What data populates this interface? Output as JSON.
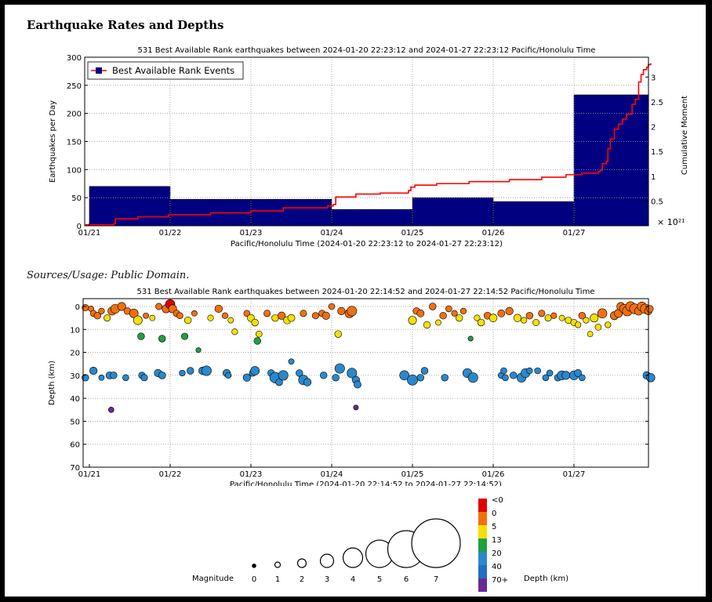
{
  "page": {
    "title": "Earthquake Rates and Depths",
    "sources_note": "Sources/Usage: Public Domain."
  },
  "chart_data": [
    {
      "type": "bar",
      "title": "531 Best Available Rank earthquakes between 2024-01-20 22:23:12 and 2024-01-27 22:23:12 Pacific/Honolulu Time",
      "xlabel": "Pacific/Honolulu Time (2024-01-20 22:23:12 to 2024-01-27 22:23:12)",
      "ylabel": "Earthquakes per Day",
      "y2label": "Cumulative Moment",
      "y2_multiplier": "× 10²¹",
      "categories": [
        "01/21",
        "01/22",
        "01/23",
        "01/24",
        "01/25",
        "01/26",
        "01/27"
      ],
      "x_ticks": [
        "01/21",
        "01/22",
        "01/23",
        "01/24",
        "01/25",
        "01/26",
        "01/27"
      ],
      "ylim": [
        0,
        300
      ],
      "y_ticks": [
        0,
        50,
        100,
        150,
        200,
        250,
        300
      ],
      "y2lim": [
        0,
        3.4
      ],
      "y2_ticks": [
        0.5,
        1,
        1.5,
        2,
        2.5,
        3
      ],
      "grid": true,
      "legend_position": "top-left",
      "series": [
        {
          "name": "Best Available Rank Events",
          "color": "#000080",
          "values": [
            70,
            47,
            47,
            29,
            50,
            43,
            233
          ]
        },
        {
          "color": "#ff0000",
          "type": "step-line",
          "x": [
            -0.05,
            0.3,
            0.32,
            0.6,
            0.98,
            1.5,
            2.0,
            2.4,
            2.95,
            3.02,
            3.05,
            3.3,
            3.6,
            3.95,
            3.98,
            4.03,
            4.3,
            4.7,
            5.2,
            5.6,
            5.9,
            6.1,
            6.3,
            6.32,
            6.35,
            6.4,
            6.42,
            6.45,
            6.5,
            6.55,
            6.6,
            6.65,
            6.72,
            6.76,
            6.8,
            6.83,
            6.86,
            6.9,
            6.92,
            6.95
          ],
          "values": [
            0.02,
            0.04,
            0.14,
            0.18,
            0.22,
            0.26,
            0.3,
            0.36,
            0.4,
            0.43,
            0.58,
            0.64,
            0.66,
            0.71,
            0.78,
            0.82,
            0.85,
            0.89,
            0.93,
            0.98,
            1.03,
            1.06,
            1.09,
            1.12,
            1.25,
            1.3,
            1.55,
            1.75,
            1.95,
            2.05,
            2.15,
            2.25,
            2.45,
            2.55,
            2.9,
            3.05,
            3.15,
            3.2,
            3.25,
            3.28
          ]
        }
      ]
    },
    {
      "type": "scatter",
      "title": "531 Best Available Rank earthquakes between 2024-01-20 22:14:52 and 2024-01-27 22:14:52 Pacific/Honolulu Time",
      "xlabel": "Pacific/Honolulu Time (2024-01-20 22:14:52 to 2024-01-27 22:14:52)",
      "ylabel": "Depth (km)",
      "x_ticks": [
        "01/21",
        "01/22",
        "01/23",
        "01/24",
        "01/25",
        "01/26",
        "01/27"
      ],
      "ylim": [
        0,
        70
      ],
      "y_ticks": [
        0,
        10,
        20,
        30,
        40,
        50,
        60,
        70
      ],
      "y_inverted": true,
      "grid": true,
      "points": [
        {
          "t": -0.05,
          "d": 0.5,
          "m": 1.5
        },
        {
          "t": 0.02,
          "d": 1,
          "m": 1.2
        },
        {
          "t": 0.05,
          "d": 3,
          "m": 1.4
        },
        {
          "t": 0.1,
          "d": 4,
          "m": 1.6
        },
        {
          "t": 0.15,
          "d": 2,
          "m": 1.3
        },
        {
          "t": 0.22,
          "d": 5,
          "m": 1.5
        },
        {
          "t": 0.28,
          "d": 2,
          "m": 2.0
        },
        {
          "t": 0.32,
          "d": 1,
          "m": 2.3
        },
        {
          "t": 0.4,
          "d": 0,
          "m": 2.0
        },
        {
          "t": 0.47,
          "d": 2,
          "m": 1.6
        },
        {
          "t": 0.55,
          "d": 3,
          "m": 2.2
        },
        {
          "t": 0.6,
          "d": 6,
          "m": 2.2
        },
        {
          "t": 0.64,
          "d": 13,
          "m": 1.6
        },
        {
          "t": 0.7,
          "d": 4,
          "m": 1.2
        },
        {
          "t": 0.78,
          "d": 5,
          "m": 1.2
        },
        {
          "t": 0.86,
          "d": 0,
          "m": 1.5
        },
        {
          "t": 0.9,
          "d": 14,
          "m": 1.6
        },
        {
          "t": 0.95,
          "d": 1,
          "m": 2.0
        },
        {
          "t": 1.0,
          "d": -1,
          "m": 2.4
        },
        {
          "t": 1.03,
          "d": 1,
          "m": 2.0
        },
        {
          "t": 1.08,
          "d": 3,
          "m": 1.5
        },
        {
          "t": 1.12,
          "d": 4,
          "m": 1.4
        },
        {
          "t": 1.18,
          "d": 13,
          "m": 1.5
        },
        {
          "t": 1.22,
          "d": 6,
          "m": 1.6
        },
        {
          "t": 1.3,
          "d": 3,
          "m": 1.2
        },
        {
          "t": 1.35,
          "d": 19,
          "m": 1.0
        },
        {
          "t": 1.5,
          "d": 5,
          "m": 1.3
        },
        {
          "t": 1.6,
          "d": 1,
          "m": 1.8
        },
        {
          "t": 1.68,
          "d": 4,
          "m": 1.3
        },
        {
          "t": 1.75,
          "d": 6,
          "m": 1.2
        },
        {
          "t": 1.8,
          "d": 11,
          "m": 1.3
        },
        {
          "t": 1.95,
          "d": 3,
          "m": 1.4
        },
        {
          "t": 2.0,
          "d": 5,
          "m": 1.7
        },
        {
          "t": 2.05,
          "d": 7,
          "m": 1.6
        },
        {
          "t": 2.08,
          "d": 15,
          "m": 1.6
        },
        {
          "t": 2.1,
          "d": 12,
          "m": 1.4
        },
        {
          "t": 2.2,
          "d": 3,
          "m": 1.5
        },
        {
          "t": 2.3,
          "d": 5,
          "m": 1.6
        },
        {
          "t": 2.38,
          "d": 4,
          "m": 1.8
        },
        {
          "t": 2.45,
          "d": 6,
          "m": 1.8
        },
        {
          "t": 2.5,
          "d": 5,
          "m": 1.7
        },
        {
          "t": 2.65,
          "d": 3,
          "m": 1.5
        },
        {
          "t": 2.8,
          "d": 4,
          "m": 1.5
        },
        {
          "t": 2.88,
          "d": 3,
          "m": 1.5
        },
        {
          "t": 2.93,
          "d": 4,
          "m": 1.8
        },
        {
          "t": 3.0,
          "d": 0,
          "m": 1.4
        },
        {
          "t": 3.08,
          "d": 12,
          "m": 1.6
        },
        {
          "t": 3.12,
          "d": 2,
          "m": 1.8
        },
        {
          "t": 3.22,
          "d": 3,
          "m": 2.2
        },
        {
          "t": 3.25,
          "d": 2,
          "m": 2.5
        },
        {
          "t": 3.3,
          "d": 44,
          "m": 1.0
        },
        {
          "t": 4.0,
          "d": 6,
          "m": 2.0
        },
        {
          "t": 4.05,
          "d": 2,
          "m": 1.6
        },
        {
          "t": 4.1,
          "d": 3,
          "m": 1.7
        },
        {
          "t": 4.18,
          "d": 8,
          "m": 1.6
        },
        {
          "t": 4.25,
          "d": 0,
          "m": 1.6
        },
        {
          "t": 4.32,
          "d": 7,
          "m": 1.2
        },
        {
          "t": 4.38,
          "d": 4,
          "m": 1.6
        },
        {
          "t": 4.45,
          "d": 1,
          "m": 1.4
        },
        {
          "t": 4.52,
          "d": 3,
          "m": 1.3
        },
        {
          "t": 4.58,
          "d": 5,
          "m": 1.6
        },
        {
          "t": 4.63,
          "d": 2,
          "m": 1.3
        },
        {
          "t": 4.72,
          "d": 14,
          "m": 1.0
        },
        {
          "t": 4.8,
          "d": 5,
          "m": 1.3
        },
        {
          "t": 4.85,
          "d": 7,
          "m": 1.6
        },
        {
          "t": 4.93,
          "d": 4,
          "m": 1.7
        },
        {
          "t": 5.0,
          "d": 5,
          "m": 1.9
        },
        {
          "t": 5.1,
          "d": 3,
          "m": 1.7
        },
        {
          "t": 5.2,
          "d": 2,
          "m": 1.8
        },
        {
          "t": 5.3,
          "d": 5,
          "m": 1.8
        },
        {
          "t": 5.38,
          "d": 6,
          "m": 1.3
        },
        {
          "t": 5.45,
          "d": 4,
          "m": 1.6
        },
        {
          "t": 5.53,
          "d": 7,
          "m": 1.5
        },
        {
          "t": 5.6,
          "d": 3,
          "m": 1.5
        },
        {
          "t": 5.68,
          "d": 5,
          "m": 1.5
        },
        {
          "t": 5.75,
          "d": 4,
          "m": 1.3
        },
        {
          "t": 5.85,
          "d": 5,
          "m": 1.2
        },
        {
          "t": 5.93,
          "d": 6,
          "m": 1.5
        },
        {
          "t": 6.0,
          "d": 7,
          "m": 1.5
        },
        {
          "t": 6.05,
          "d": 8,
          "m": 1.3
        },
        {
          "t": 6.1,
          "d": 4,
          "m": 1.6
        },
        {
          "t": 6.15,
          "d": 6,
          "m": 1.3
        },
        {
          "t": 6.2,
          "d": 12,
          "m": 1.2
        },
        {
          "t": 6.25,
          "d": 5,
          "m": 2.0
        },
        {
          "t": 6.3,
          "d": 9,
          "m": 1.4
        },
        {
          "t": 6.35,
          "d": 3,
          "m": 2.4
        },
        {
          "t": 6.42,
          "d": 8,
          "m": 1.3
        },
        {
          "t": 6.5,
          "d": 4,
          "m": 2.0
        },
        {
          "t": 6.55,
          "d": 3,
          "m": 2.0
        },
        {
          "t": 6.58,
          "d": 0,
          "m": 2.0
        },
        {
          "t": 6.62,
          "d": 1,
          "m": 2.2
        },
        {
          "t": 6.66,
          "d": 2,
          "m": 2.5
        },
        {
          "t": 6.7,
          "d": 0,
          "m": 2.5
        },
        {
          "t": 6.75,
          "d": 1,
          "m": 2.6
        },
        {
          "t": 6.8,
          "d": 2,
          "m": 2.0
        },
        {
          "t": 6.84,
          "d": 0,
          "m": 2.3
        },
        {
          "t": 6.88,
          "d": 1,
          "m": 2.4
        },
        {
          "t": 6.92,
          "d": 2,
          "m": 1.8
        },
        {
          "t": 6.94,
          "d": 1,
          "m": 1.6
        }
      ]
    }
  ],
  "legend": {
    "magnitude_label": "Magnitude",
    "magnitudes": [
      "0",
      "1",
      "2",
      "3",
      "4",
      "5",
      "6",
      "7"
    ],
    "depth_label": "Depth (km)",
    "depth_bins": [
      {
        "label": "<0",
        "color": "#e00000"
      },
      {
        "label": "0",
        "color": "#f07010"
      },
      {
        "label": "5",
        "color": "#f5e000"
      },
      {
        "label": "13",
        "color": "#20a040"
      },
      {
        "label": "20",
        "color": "#2a88cc"
      },
      {
        "label": "40",
        "color": "#1e70c0"
      },
      {
        "label": "70+",
        "color": "#6a2a90"
      }
    ]
  }
}
